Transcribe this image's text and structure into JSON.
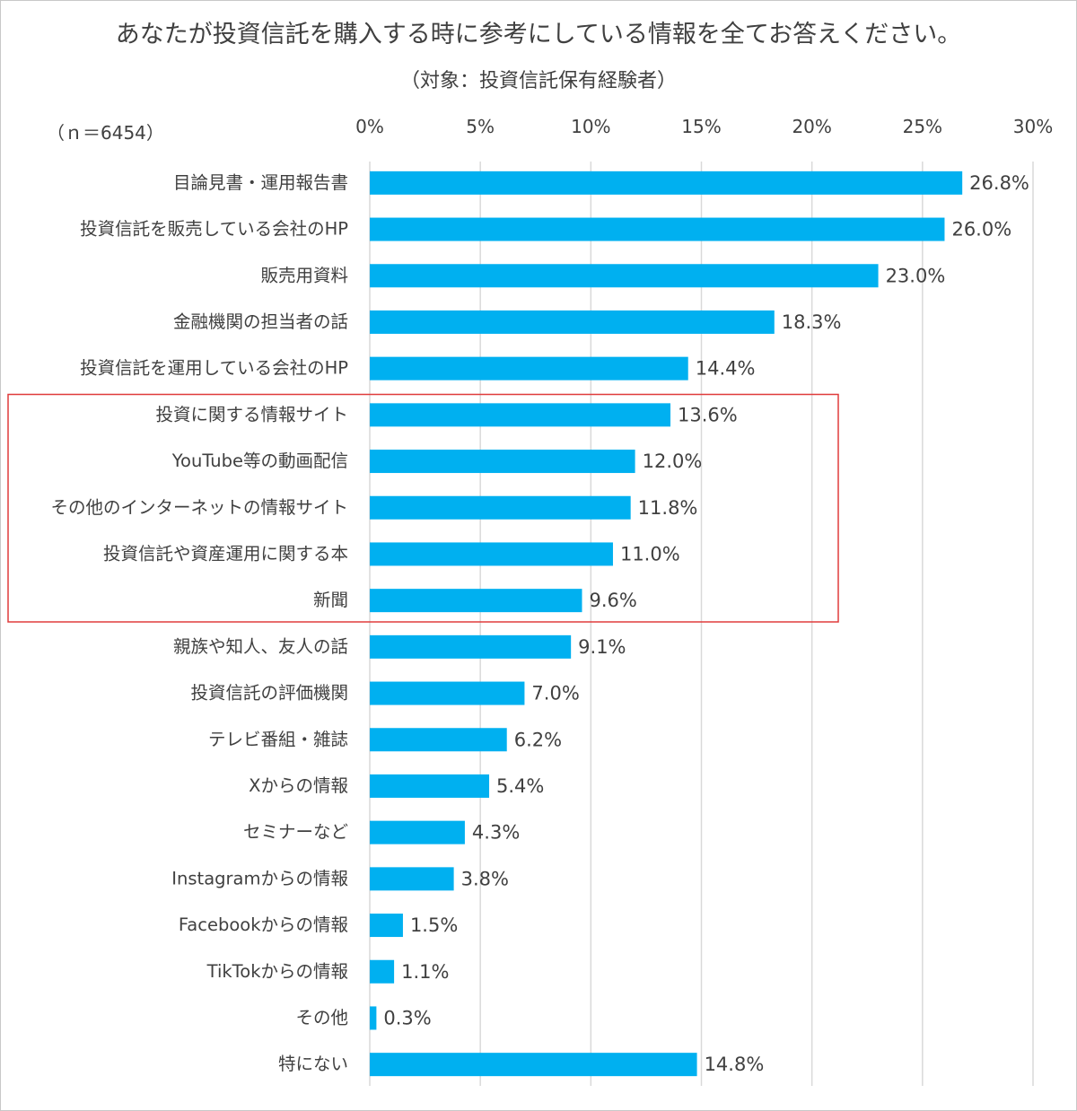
{
  "chart_data": {
    "type": "bar",
    "orientation": "horizontal",
    "title": "あなたが投資信託を購入する時に参考にしている情報を全てお答えください。",
    "subtitle": "（対象：投資信託保有経験者）",
    "note": "（ｎ＝6454）",
    "xlim": [
      0,
      30
    ],
    "xticks": [
      "0%",
      "5%",
      "10%",
      "15%",
      "20%",
      "25%",
      "30%"
    ],
    "xtick_values": [
      0,
      5,
      10,
      15,
      20,
      25,
      30
    ],
    "grid": true,
    "bar_color": "#00b0f0",
    "highlight_color": "#e03c3c",
    "highlight_categories": [
      "投資に関する情報サイト",
      "YouTube等の動画配信",
      "その他のインターネットの情報サイト",
      "投資信託や資産運用に関する本",
      "新聞"
    ],
    "categories": [
      "目論見書・運用報告書",
      "投資信託を販売している会社のHP",
      "販売用資料",
      "金融機関の担当者の話",
      "投資信託を運用している会社のHP",
      "投資に関する情報サイト",
      "YouTube等の動画配信",
      "その他のインターネットの情報サイト",
      "投資信託や資産運用に関する本",
      "新聞",
      "親族や知人、友人の話",
      "投資信託の評価機関",
      "テレビ番組・雑誌",
      "Xからの情報",
      "セミナーなど",
      "Instagramからの情報",
      "Facebookからの情報",
      "TikTokからの情報",
      "その他",
      "特にない"
    ],
    "values": [
      26.8,
      26.0,
      23.0,
      18.3,
      14.4,
      13.6,
      12.0,
      11.8,
      11.0,
      9.6,
      9.1,
      7.0,
      6.2,
      5.4,
      4.3,
      3.8,
      1.5,
      1.1,
      0.3,
      14.8
    ],
    "value_labels": [
      "26.8%",
      "26.0%",
      "23.0%",
      "18.3%",
      "14.4%",
      "13.6%",
      "12.0%",
      "11.8%",
      "11.0%",
      "9.6%",
      "9.1%",
      "7.0%",
      "6.2%",
      "5.4%",
      "4.3%",
      "3.8%",
      "1.5%",
      "1.1%",
      "0.3%",
      "14.8%"
    ]
  }
}
